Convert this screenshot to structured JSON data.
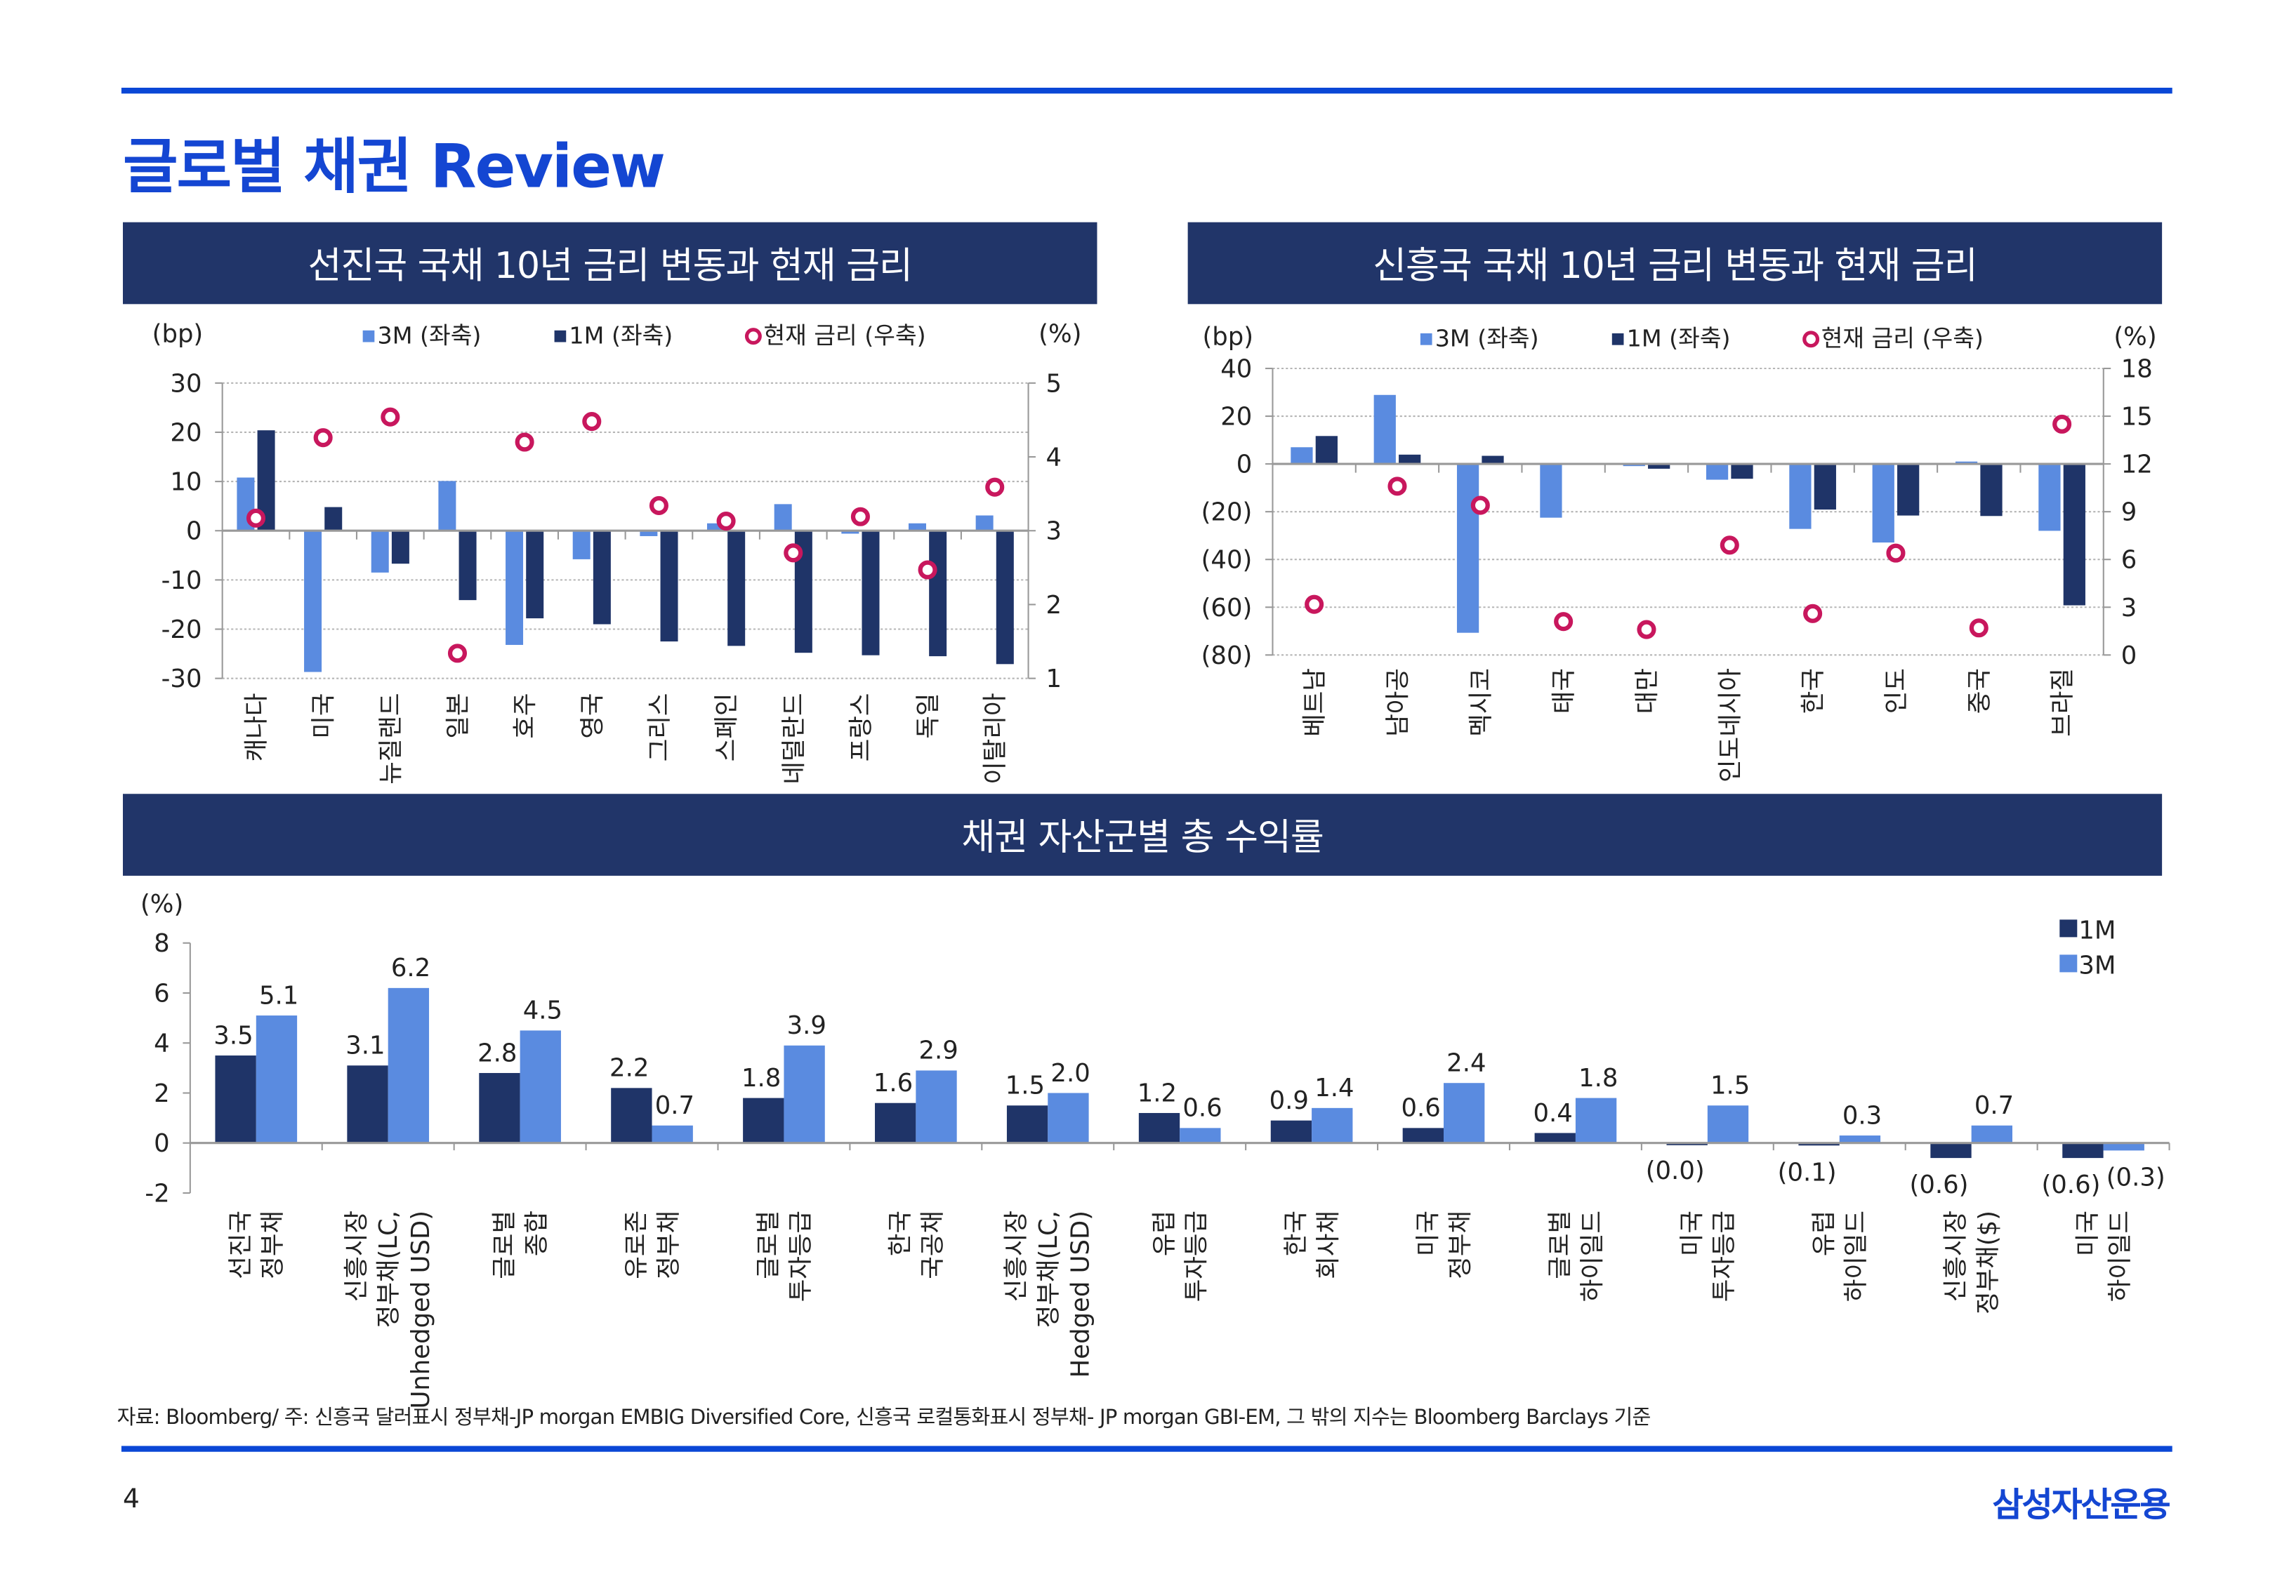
{
  "page": {
    "title": "글로벌 채권 Review",
    "page_number": "4",
    "logo": "삼성자산운용",
    "footnote": "자료: Bloomberg/ 주: 신흥국 달러표시 정부채-JP morgan EMBIG Diversified Core, 신흥국 로컬통화표시 정부채- JP morgan GBI-EM, 그 밖의 지수는 Bloomberg Barclays 기준"
  },
  "colors": {
    "navy": "#213569",
    "bar_1m": "#1f3468",
    "bar_3m": "#5a8be0",
    "marker": "#c8175d",
    "accent": "#1446d2"
  },
  "chart_data": [
    {
      "type": "bar",
      "title": "선진국 국채 10년 금리 변동과 현재 금리",
      "ylabel": "(bp)",
      "y2label": "(%)",
      "ylim": [
        -30,
        30
      ],
      "yticks": [
        30,
        20,
        10,
        0,
        -10,
        -20,
        -30
      ],
      "y2lim": [
        1,
        5
      ],
      "y2ticks": [
        5,
        4,
        3,
        2,
        1
      ],
      "legend": {
        "s3m": "3M (좌축)",
        "s1m": "1M (좌축)",
        "rate": "현재 금리 (우축)"
      },
      "categories": [
        "캐나다",
        "미국",
        "뉴질랜드",
        "일본",
        "호주",
        "영국",
        "그리스",
        "스페인",
        "네덜란드",
        "프랑스",
        "독일",
        "이탈리아"
      ],
      "series": [
        {
          "name": "3M",
          "axis": "left",
          "values": [
            10.8,
            -28.7,
            -8.5,
            10.1,
            -23.2,
            -5.8,
            -1.1,
            1.5,
            5.4,
            -0.6,
            1.5,
            3.1
          ]
        },
        {
          "name": "1M",
          "axis": "left",
          "values": [
            20.4,
            4.8,
            -6.7,
            -14.1,
            -17.8,
            -19.0,
            -22.5,
            -23.4,
            -24.8,
            -25.3,
            -25.5,
            -27.1
          ]
        },
        {
          "name": "현재 금리",
          "axis": "right",
          "values": [
            3.17,
            4.26,
            4.54,
            1.34,
            4.2,
            4.48,
            3.34,
            3.13,
            2.7,
            3.19,
            2.47,
            3.59
          ]
        }
      ]
    },
    {
      "type": "bar",
      "title": "신흥국 국채 10년 금리 변동과 현재 금리",
      "ylabel": "(bp)",
      "y2label": "(%)",
      "ylim": [
        -80,
        40
      ],
      "yticks": [
        40,
        20,
        0,
        -20,
        -40,
        -60,
        -80
      ],
      "y2lim": [
        0,
        18
      ],
      "y2ticks": [
        18,
        15,
        12,
        9,
        6,
        3,
        0
      ],
      "legend": {
        "s3m": "3M (좌축)",
        "s1m": "1M (좌축)",
        "rate": "현재 금리 (우축)"
      },
      "categories": [
        "베트남",
        "남아공",
        "멕시코",
        "태국",
        "대만",
        "인도네시아",
        "한국",
        "인도",
        "중국",
        "브라질"
      ],
      "series": [
        {
          "name": "3M",
          "axis": "left",
          "values": [
            7.0,
            28.9,
            -70.7,
            -22.5,
            -0.9,
            -6.6,
            -27.2,
            -32.9,
            1.0,
            -28.0
          ]
        },
        {
          "name": "1M",
          "axis": "left",
          "values": [
            11.7,
            3.9,
            3.4,
            0,
            -2.0,
            -6.2,
            -19.1,
            -21.6,
            -21.8,
            -59.2
          ]
        },
        {
          "name": "현재 금리",
          "axis": "right",
          "values": [
            3.18,
            10.6,
            9.4,
            2.1,
            1.6,
            6.9,
            2.6,
            6.4,
            1.7,
            14.5
          ]
        }
      ]
    },
    {
      "type": "bar",
      "title": "채권 자산군별 총 수익률",
      "ylabel": "(%)",
      "ylim": [
        -2,
        8
      ],
      "yticks": [
        8,
        6,
        4,
        2,
        0,
        -2
      ],
      "legend": {
        "s1m": "1M",
        "s3m": "3M"
      },
      "categories": [
        [
          "선진국",
          "정부채"
        ],
        [
          "신흥시장",
          "정부채(LC,",
          "Unhedged USD)"
        ],
        [
          "글로벌",
          "종합"
        ],
        [
          "유로존",
          "정부채"
        ],
        [
          "글로벌",
          "투자등급"
        ],
        [
          "한국",
          "국공채"
        ],
        [
          "신흥시장",
          "정부채(LC,",
          "Hedged USD)"
        ],
        [
          "유럽",
          "투자등급"
        ],
        [
          "한국",
          "회사채"
        ],
        [
          "미국",
          "정부채"
        ],
        [
          "글로벌",
          "하이일드"
        ],
        [
          "미국",
          "투자등급"
        ],
        [
          "유럽",
          "하이일드"
        ],
        [
          "신흥시장",
          "정부채($)"
        ],
        [
          "미국",
          "하이일드"
        ]
      ],
      "series": [
        {
          "name": "1M",
          "values": [
            3.5,
            3.1,
            2.8,
            2.2,
            1.8,
            1.6,
            1.5,
            1.2,
            0.9,
            0.6,
            0.4,
            -0.04,
            -0.1,
            -0.6,
            -0.6
          ]
        },
        {
          "name": "3M",
          "values": [
            5.1,
            6.2,
            4.5,
            0.7,
            3.9,
            2.9,
            2.0,
            0.6,
            1.4,
            2.4,
            1.8,
            1.5,
            0.3,
            0.7,
            -0.3
          ]
        }
      ]
    }
  ]
}
